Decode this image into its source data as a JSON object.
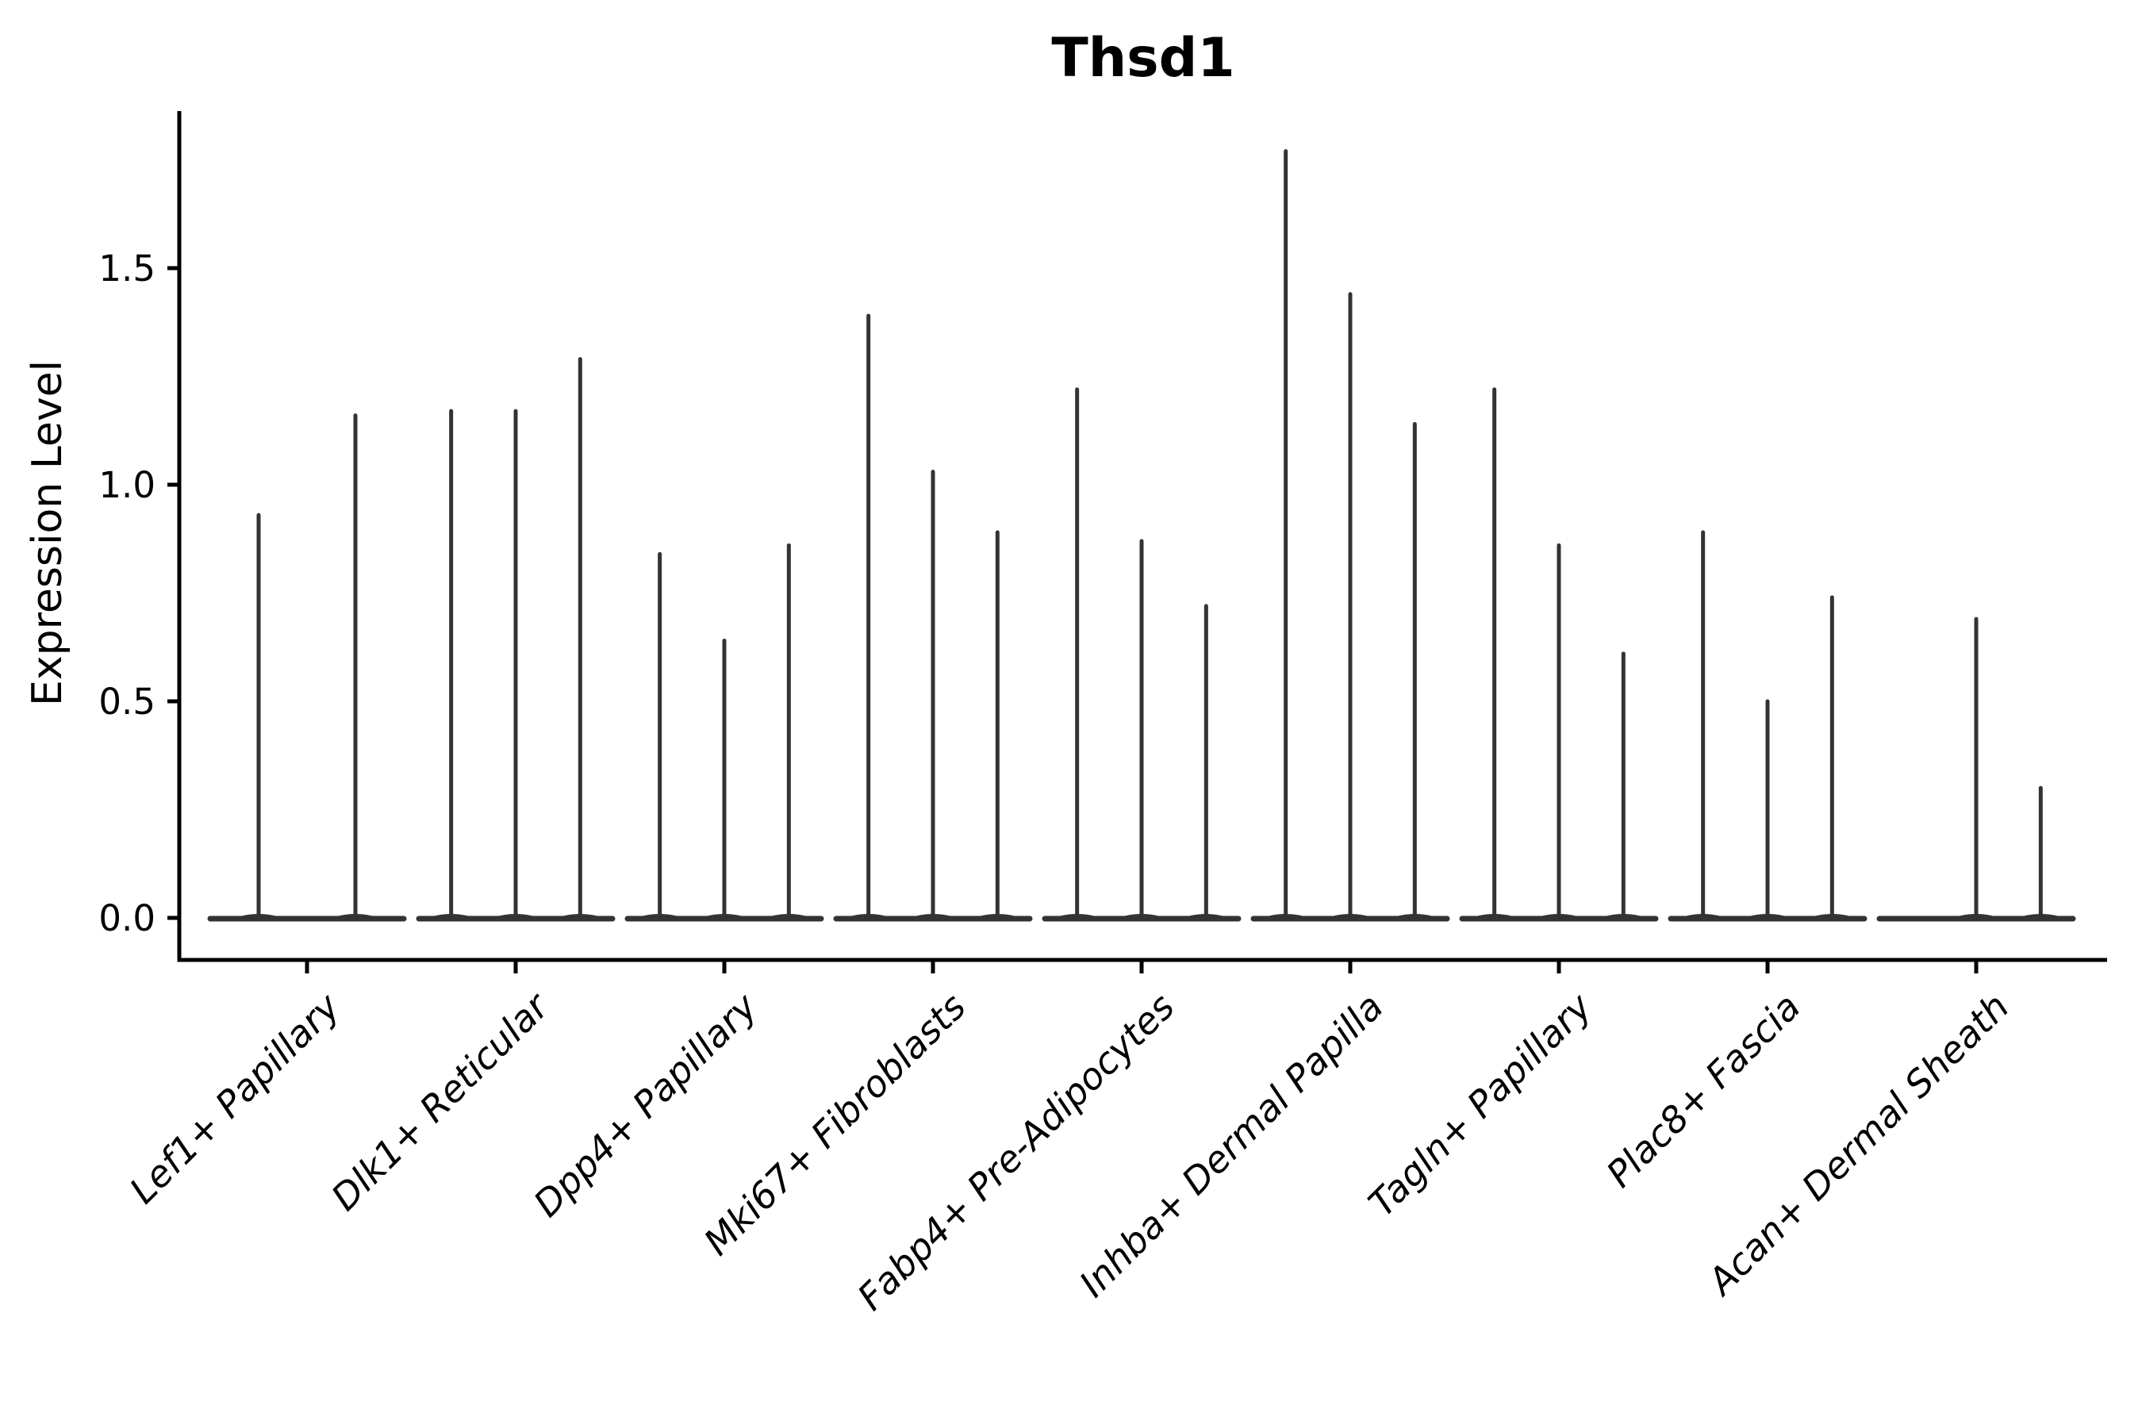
{
  "chart_data": {
    "type": "violin",
    "title": "Thsd1",
    "ylabel": "Expression Level",
    "xlabel": "",
    "ylim": [
      -0.09,
      1.86
    ],
    "yticks": [
      0.0,
      0.5,
      1.0,
      1.5
    ],
    "ytick_labels": [
      "0.0",
      "0.5",
      "1.0",
      "1.5"
    ],
    "grid": false,
    "legend": "none",
    "x_tick_rotation_deg": 45,
    "ink_color": "#000000",
    "violin_color": "#333333",
    "violin_style": "very narrow violins: mass flattened at 0 with thin tail up to max expression",
    "categories": [
      "Lef1+ Papillary",
      "Dlk1+ Reticular",
      "Dpp4+ Papillary",
      "Mki67+ Fibroblasts",
      "Fabp4+ Pre-Adipocytes",
      "Inhba+ Dermal Papilla",
      "Tagln+ Papillary",
      "Plac8+ Fascia",
      "Acan+ Dermal Sheath"
    ],
    "groups": [
      {
        "category": "Lef1+ Papillary",
        "violin_max_expression": [
          0.93,
          1.16
        ]
      },
      {
        "category": "Dlk1+ Reticular",
        "violin_max_expression": [
          1.17,
          1.17,
          1.29
        ]
      },
      {
        "category": "Dpp4+ Papillary",
        "violin_max_expression": [
          0.84,
          0.64,
          0.86
        ]
      },
      {
        "category": "Mki67+ Fibroblasts",
        "violin_max_expression": [
          1.39,
          1.03,
          0.89
        ]
      },
      {
        "category": "Fabp4+ Pre-Adipocytes",
        "violin_max_expression": [
          1.22,
          0.87,
          0.72
        ]
      },
      {
        "category": "Inhba+ Dermal Papilla",
        "violin_max_expression": [
          1.77,
          1.44,
          1.14
        ]
      },
      {
        "category": "Tagln+ Papillary",
        "violin_max_expression": [
          1.22,
          0.86,
          0.61
        ]
      },
      {
        "category": "Plac8+ Fascia",
        "violin_max_expression": [
          0.89,
          0.5,
          0.74
        ]
      },
      {
        "category": "Acan+ Dermal Sheath",
        "violin_max_expression": [
          0.0,
          0.69,
          0.3
        ]
      }
    ]
  }
}
